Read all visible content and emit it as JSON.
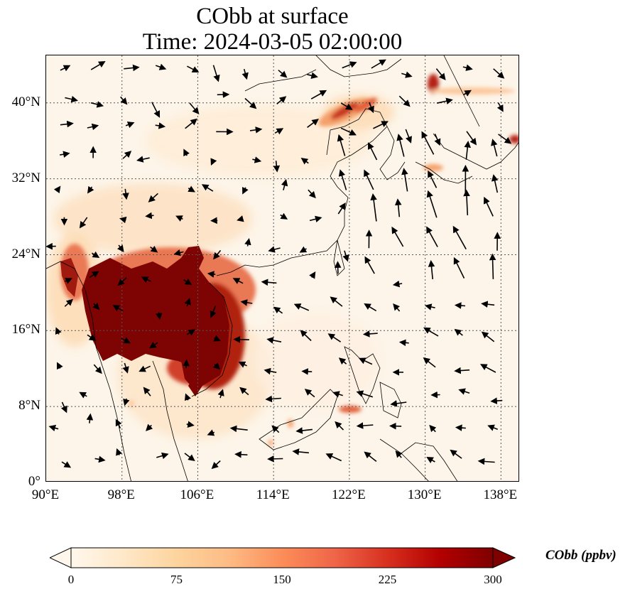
{
  "title": {
    "line1": "CObb at surface",
    "line2": "Time: 2024-03-05 02:00:00"
  },
  "map": {
    "projection": "PlateCarree",
    "lon_range": [
      90,
      140
    ],
    "lat_range": [
      0,
      45
    ],
    "gridlines": "dotted",
    "x_ticks": [
      "90°E",
      "98°E",
      "106°E",
      "114°E",
      "122°E",
      "130°E",
      "138°E"
    ],
    "y_ticks": [
      "0°",
      "8°N",
      "16°N",
      "24°N",
      "32°N",
      "40°N"
    ],
    "variable": "CObb",
    "overlay": "wind vectors (arrows)",
    "high_concentration_regions": [
      {
        "name": "Indochina / Myanmar burning area",
        "level": "above 300"
      },
      {
        "name": "Northeast China (Liaoning)",
        "level": "about 200"
      },
      {
        "name": "Korea / Russia border",
        "level": "about 150"
      },
      {
        "name": "Japan (east)",
        "level": "about 200"
      },
      {
        "name": "Mindanao",
        "level": "about 150"
      }
    ]
  },
  "colorbar": {
    "colormap": "OrRd",
    "colors": [
      "#fff7ec",
      "#fee8c8",
      "#fdd49e",
      "#fdbb84",
      "#fc8d59",
      "#ef6548",
      "#d7301f",
      "#b30000",
      "#7f0000"
    ],
    "min": 0,
    "max": 300,
    "extend": "both",
    "ticks": [
      "0",
      "75",
      "150",
      "225",
      "300"
    ],
    "label": "CObb (ppbv)"
  }
}
